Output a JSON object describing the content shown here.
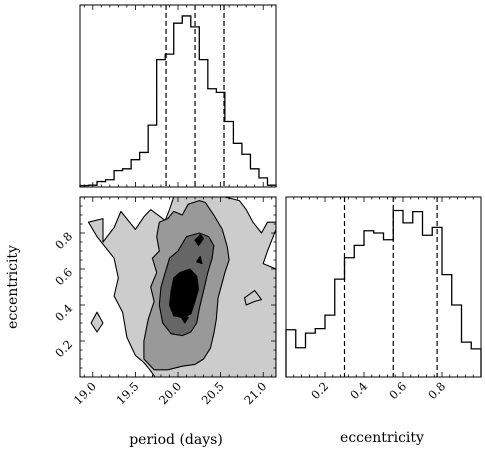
{
  "chart_data": [
    {
      "type": "histogram",
      "panel": "top-left",
      "x_parameter": "period (days)",
      "xlim": [
        18.85,
        21.15
      ],
      "bins": [
        {
          "x0": 18.85,
          "x1": 18.95,
          "count": 0.4
        },
        {
          "x0": 18.95,
          "x1": 19.05,
          "count": 0.5
        },
        {
          "x0": 19.05,
          "x1": 19.15,
          "count": 1.5
        },
        {
          "x0": 19.15,
          "x1": 19.25,
          "count": 2.0
        },
        {
          "x0": 19.25,
          "x1": 19.35,
          "count": 4.5
        },
        {
          "x0": 19.35,
          "x1": 19.45,
          "count": 5.0
        },
        {
          "x0": 19.45,
          "x1": 19.55,
          "count": 7.5
        },
        {
          "x0": 19.55,
          "x1": 19.65,
          "count": 9.5
        },
        {
          "x0": 19.65,
          "x1": 19.75,
          "count": 17.0
        },
        {
          "x0": 19.75,
          "x1": 19.85,
          "count": 35.0
        },
        {
          "x0": 19.85,
          "x1": 19.95,
          "count": 36.5
        },
        {
          "x0": 19.95,
          "x1": 20.05,
          "count": 45.0
        },
        {
          "x0": 20.05,
          "x1": 20.15,
          "count": 47.0
        },
        {
          "x0": 20.15,
          "x1": 20.25,
          "count": 44.0
        },
        {
          "x0": 20.25,
          "x1": 20.35,
          "count": 35.0
        },
        {
          "x0": 20.35,
          "x1": 20.45,
          "count": 27.0
        },
        {
          "x0": 20.45,
          "x1": 20.55,
          "count": 26.0
        },
        {
          "x0": 20.55,
          "x1": 20.65,
          "count": 18.0
        },
        {
          "x0": 20.65,
          "x1": 20.75,
          "count": 12.0
        },
        {
          "x0": 20.75,
          "x1": 20.85,
          "count": 9.0
        },
        {
          "x0": 20.85,
          "x1": 20.95,
          "count": 5.0
        },
        {
          "x0": 20.95,
          "x1": 21.05,
          "count": 2.5
        },
        {
          "x0": 21.05,
          "x1": 21.15,
          "count": 0.5
        }
      ],
      "ylim": [
        0,
        50
      ],
      "quantiles": [
        19.86,
        20.2,
        20.54
      ]
    },
    {
      "type": "histogram",
      "panel": "bottom-right",
      "xlabel": "eccentricity",
      "xlim": [
        0.0,
        1.0
      ],
      "xticks": [
        "0.2",
        "0.4",
        "0.6",
        "0.8"
      ],
      "xtick_values": [
        0.2,
        0.4,
        0.6,
        0.8
      ],
      "bins": [
        {
          "x0": 0.0,
          "x1": 0.05,
          "count": 21.0
        },
        {
          "x0": 0.05,
          "x1": 0.1,
          "count": 13.0
        },
        {
          "x0": 0.1,
          "x1": 0.15,
          "count": 19.5
        },
        {
          "x0": 0.15,
          "x1": 0.2,
          "count": 21.5
        },
        {
          "x0": 0.2,
          "x1": 0.25,
          "count": 27.5
        },
        {
          "x0": 0.25,
          "x1": 0.3,
          "count": 43.5
        },
        {
          "x0": 0.3,
          "x1": 0.35,
          "count": 53.0
        },
        {
          "x0": 0.35,
          "x1": 0.4,
          "count": 58.5
        },
        {
          "x0": 0.4,
          "x1": 0.45,
          "count": 65.0
        },
        {
          "x0": 0.45,
          "x1": 0.5,
          "count": 64.0
        },
        {
          "x0": 0.5,
          "x1": 0.55,
          "count": 61.0
        },
        {
          "x0": 0.55,
          "x1": 0.6,
          "count": 74.0
        },
        {
          "x0": 0.6,
          "x1": 0.65,
          "count": 68.5
        },
        {
          "x0": 0.65,
          "x1": 0.7,
          "count": 73.5
        },
        {
          "x0": 0.7,
          "x1": 0.75,
          "count": 63.0
        },
        {
          "x0": 0.75,
          "x1": 0.8,
          "count": 66.5
        },
        {
          "x0": 0.8,
          "x1": 0.85,
          "count": 45.5
        },
        {
          "x0": 0.85,
          "x1": 0.9,
          "count": 32.0
        },
        {
          "x0": 0.9,
          "x1": 0.95,
          "count": 15.5
        },
        {
          "x0": 0.95,
          "x1": 1.0,
          "count": 12.5
        }
      ],
      "ylim": [
        0,
        80
      ],
      "quantiles": [
        0.3,
        0.55,
        0.775
      ]
    },
    {
      "type": "contour",
      "panel": "bottom-left",
      "xlabel": "period (days)",
      "ylabel": "eccentricity",
      "xlim": [
        18.85,
        21.15
      ],
      "ylim": [
        0.0,
        1.0
      ],
      "xticks": [
        "19.0",
        "19.5",
        "20.0",
        "20.5",
        "21.0"
      ],
      "xtick_values": [
        19.0,
        19.5,
        20.0,
        20.5,
        21.0
      ],
      "yticks": [
        "0.2",
        "0.4",
        "0.6",
        "0.8"
      ],
      "ytick_values": [
        0.2,
        0.4,
        0.6,
        0.8
      ],
      "levels": [
        {
          "fill": "#cccccc",
          "outlines": [
            [
              [
                19.73,
                0.0
              ],
              [
                21.15,
                0.0
              ],
              [
                21.15,
                0.6
              ],
              [
                21.0,
                0.63
              ],
              [
                21.05,
                0.7
              ],
              [
                21.15,
                0.82
              ],
              [
                21.15,
                0.86
              ],
              [
                21.05,
                0.86
              ],
              [
                20.98,
                0.8
              ],
              [
                20.88,
                0.86
              ],
              [
                20.8,
                0.93
              ],
              [
                20.72,
                0.98
              ],
              [
                20.55,
                1.0
              ],
              [
                19.95,
                1.0
              ],
              [
                19.9,
                0.93
              ],
              [
                19.85,
                0.87
              ],
              [
                19.68,
                0.93
              ],
              [
                19.6,
                0.89
              ],
              [
                19.5,
                0.82
              ],
              [
                19.33,
                0.92
              ],
              [
                19.25,
                0.83
              ],
              [
                19.12,
                0.75
              ],
              [
                19.12,
                0.88
              ],
              [
                18.95,
                0.86
              ],
              [
                19.05,
                0.78
              ],
              [
                19.25,
                0.66
              ],
              [
                19.3,
                0.55
              ],
              [
                19.25,
                0.45
              ],
              [
                19.35,
                0.36
              ],
              [
                19.4,
                0.22
              ],
              [
                19.5,
                0.12
              ],
              [
                19.6,
                0.08
              ],
              [
                19.67,
                0.04
              ]
            ],
            [
              [
                18.98,
                0.3
              ],
              [
                19.05,
                0.25
              ],
              [
                19.12,
                0.3
              ],
              [
                19.05,
                0.36
              ]
            ],
            [
              [
                20.8,
                0.4
              ],
              [
                20.9,
                0.42
              ],
              [
                20.98,
                0.43
              ],
              [
                20.9,
                0.48
              ],
              [
                20.78,
                0.44
              ]
            ]
          ]
        },
        {
          "fill": "#999999",
          "outlines": [
            [
              [
                19.6,
                0.1
              ],
              [
                19.72,
                0.04
              ],
              [
                19.88,
                0.04
              ],
              [
                20.05,
                0.06
              ],
              [
                20.2,
                0.07
              ],
              [
                20.3,
                0.1
              ],
              [
                20.38,
                0.16
              ],
              [
                20.42,
                0.24
              ],
              [
                20.45,
                0.32
              ],
              [
                20.47,
                0.44
              ],
              [
                20.55,
                0.58
              ],
              [
                20.6,
                0.65
              ],
              [
                20.58,
                0.72
              ],
              [
                20.52,
                0.82
              ],
              [
                20.42,
                0.9
              ],
              [
                20.32,
                0.97
              ],
              [
                20.25,
                0.98
              ],
              [
                20.12,
                0.96
              ],
              [
                20.05,
                0.9
              ],
              [
                19.95,
                0.92
              ],
              [
                19.88,
                0.88
              ],
              [
                19.78,
                0.86
              ],
              [
                19.75,
                0.78
              ],
              [
                19.78,
                0.7
              ],
              [
                19.7,
                0.66
              ],
              [
                19.75,
                0.58
              ],
              [
                19.68,
                0.5
              ],
              [
                19.72,
                0.42
              ],
              [
                19.65,
                0.32
              ],
              [
                19.6,
                0.2
              ]
            ]
          ]
        },
        {
          "fill": "#666666",
          "outlines": [
            [
              [
                19.82,
                0.3
              ],
              [
                19.92,
                0.24
              ],
              [
                20.05,
                0.23
              ],
              [
                20.15,
                0.25
              ],
              [
                20.22,
                0.3
              ],
              [
                20.25,
                0.38
              ],
              [
                20.3,
                0.48
              ],
              [
                20.35,
                0.58
              ],
              [
                20.4,
                0.66
              ],
              [
                20.42,
                0.73
              ],
              [
                20.36,
                0.78
              ],
              [
                20.25,
                0.8
              ],
              [
                20.1,
                0.78
              ],
              [
                20.0,
                0.7
              ],
              [
                19.9,
                0.66
              ],
              [
                19.85,
                0.58
              ],
              [
                19.8,
                0.5
              ],
              [
                19.78,
                0.4
              ]
            ]
          ]
        },
        {
          "fill": "#000000",
          "outlines": [
            [
              [
                19.9,
                0.4
              ],
              [
                19.95,
                0.34
              ],
              [
                20.05,
                0.33
              ],
              [
                20.15,
                0.35
              ],
              [
                20.2,
                0.42
              ],
              [
                20.24,
                0.49
              ],
              [
                20.22,
                0.56
              ],
              [
                20.14,
                0.6
              ],
              [
                20.02,
                0.58
              ],
              [
                19.95,
                0.55
              ],
              [
                19.92,
                0.48
              ]
            ],
            [
              [
                20.22,
                0.64
              ],
              [
                20.28,
                0.63
              ],
              [
                20.26,
                0.67
              ]
            ],
            [
              [
                20.2,
                0.76
              ],
              [
                20.24,
                0.73
              ],
              [
                20.3,
                0.77
              ],
              [
                20.26,
                0.79
              ]
            ],
            [
              [
                20.04,
                0.33
              ],
              [
                20.08,
                0.3
              ],
              [
                20.12,
                0.33
              ],
              [
                20.08,
                0.35
              ]
            ]
          ]
        }
      ]
    }
  ]
}
